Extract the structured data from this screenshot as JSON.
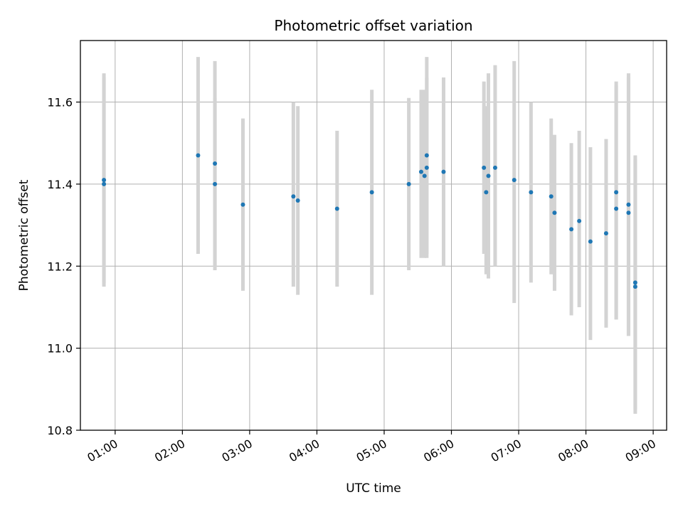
{
  "chart_data": {
    "type": "scatter",
    "title": "Photometric offset variation",
    "xlabel": "UTC time",
    "ylabel": "Photometric offset",
    "xlim": [
      "00:29",
      "09:12"
    ],
    "ylim": [
      10.8,
      11.75
    ],
    "xticks": [
      "01:00",
      "02:00",
      "03:00",
      "04:00",
      "05:00",
      "06:00",
      "07:00",
      "08:00",
      "09:00"
    ],
    "yticks": [
      "10.8",
      "11.0",
      "11.2",
      "11.4",
      "11.6"
    ],
    "grid": true,
    "legend": "none",
    "colors": {
      "points": "#1f77b4",
      "error_bars": "#d3d3d3",
      "grid": "#b0b0b0"
    },
    "points": [
      {
        "time": "00:50",
        "y": 11.41,
        "ylow": 11.16,
        "yhigh": 11.67
      },
      {
        "time": "00:50",
        "y": 11.4,
        "ylow": 11.15,
        "yhigh": 11.66
      },
      {
        "time": "02:14",
        "y": 11.47,
        "ylow": 11.23,
        "yhigh": 11.71
      },
      {
        "time": "02:29",
        "y": 11.45,
        "ylow": 11.2,
        "yhigh": 11.7
      },
      {
        "time": "02:29",
        "y": 11.4,
        "ylow": 11.19,
        "yhigh": 11.61
      },
      {
        "time": "02:54",
        "y": 11.35,
        "ylow": 11.14,
        "yhigh": 11.56
      },
      {
        "time": "03:39",
        "y": 11.37,
        "ylow": 11.15,
        "yhigh": 11.6
      },
      {
        "time": "03:43",
        "y": 11.36,
        "ylow": 11.13,
        "yhigh": 11.59
      },
      {
        "time": "04:18",
        "y": 11.34,
        "ylow": 11.15,
        "yhigh": 11.53
      },
      {
        "time": "04:49",
        "y": 11.38,
        "ylow": 11.13,
        "yhigh": 11.63
      },
      {
        "time": "05:22",
        "y": 11.4,
        "ylow": 11.19,
        "yhigh": 11.61
      },
      {
        "time": "05:33",
        "y": 11.43,
        "ylow": 11.22,
        "yhigh": 11.63
      },
      {
        "time": "05:36",
        "y": 11.42,
        "ylow": 11.22,
        "yhigh": 11.63
      },
      {
        "time": "05:38",
        "y": 11.44,
        "ylow": 11.23,
        "yhigh": 11.66
      },
      {
        "time": "05:38",
        "y": 11.47,
        "ylow": 11.22,
        "yhigh": 11.71
      },
      {
        "time": "05:53",
        "y": 11.43,
        "ylow": 11.2,
        "yhigh": 11.66
      },
      {
        "time": "06:29",
        "y": 11.44,
        "ylow": 11.23,
        "yhigh": 11.65
      },
      {
        "time": "06:31",
        "y": 11.38,
        "ylow": 11.18,
        "yhigh": 11.59
      },
      {
        "time": "06:33",
        "y": 11.42,
        "ylow": 11.17,
        "yhigh": 11.67
      },
      {
        "time": "06:39",
        "y": 11.44,
        "ylow": 11.2,
        "yhigh": 11.69
      },
      {
        "time": "06:56",
        "y": 11.41,
        "ylow": 11.11,
        "yhigh": 11.7
      },
      {
        "time": "07:11",
        "y": 11.38,
        "ylow": 11.16,
        "yhigh": 11.6
      },
      {
        "time": "07:29",
        "y": 11.37,
        "ylow": 11.18,
        "yhigh": 11.56
      },
      {
        "time": "07:32",
        "y": 11.33,
        "ylow": 11.14,
        "yhigh": 11.52
      },
      {
        "time": "07:47",
        "y": 11.29,
        "ylow": 11.08,
        "yhigh": 11.5
      },
      {
        "time": "07:54",
        "y": 11.31,
        "ylow": 11.1,
        "yhigh": 11.53
      },
      {
        "time": "08:04",
        "y": 11.26,
        "ylow": 11.02,
        "yhigh": 11.49
      },
      {
        "time": "08:18",
        "y": 11.28,
        "ylow": 11.05,
        "yhigh": 11.51
      },
      {
        "time": "08:27",
        "y": 11.38,
        "ylow": 11.07,
        "yhigh": 11.65
      },
      {
        "time": "08:27",
        "y": 11.34,
        "ylow": 11.07,
        "yhigh": 11.64
      },
      {
        "time": "08:38",
        "y": 11.35,
        "ylow": 11.03,
        "yhigh": 11.67
      },
      {
        "time": "08:38",
        "y": 11.33,
        "ylow": 11.03,
        "yhigh": 11.66
      },
      {
        "time": "08:44",
        "y": 11.16,
        "ylow": 10.85,
        "yhigh": 11.47
      },
      {
        "time": "08:44",
        "y": 11.15,
        "ylow": 10.84,
        "yhigh": 11.46
      }
    ]
  }
}
